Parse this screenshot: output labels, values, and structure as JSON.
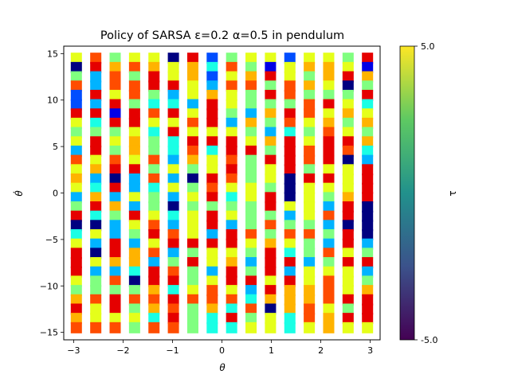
{
  "chart_data": {
    "type": "heatmap",
    "title": "Policy of SARSA ε=0.2 α=0.5 in pendulum",
    "xlabel": "θ",
    "ylabel": "θ̇",
    "colorbar_label": "τ",
    "xlim": [
      -3.2,
      3.2
    ],
    "ylim": [
      -15.8,
      15.8
    ],
    "x_ticks": [
      -3,
      -2,
      -1,
      0,
      1,
      2,
      3
    ],
    "x_tick_labels": [
      "−3",
      "−2",
      "−1",
      "0",
      "1",
      "2",
      "3"
    ],
    "y_ticks": [
      -15,
      -10,
      -5,
      0,
      5,
      10,
      15
    ],
    "y_tick_labels": [
      "−15",
      "−10",
      "−5",
      "0",
      "5",
      "10",
      "15"
    ],
    "colorbar_range": [
      -5.0,
      5.0
    ],
    "colorbar_tick_labels": [
      "5.0",
      "-5.0"
    ],
    "colormap_points": [
      "#440154",
      "#3b528b",
      "#21918c",
      "#5ec962",
      "#fde725"
    ],
    "marker_colormap": "jet",
    "grid": false,
    "x": [
      -2.9452,
      -2.5525,
      -2.1598,
      -1.7671,
      -1.3744,
      -0.9817,
      -0.589,
      -0.1963,
      0.1963,
      0.589,
      0.9817,
      1.3744,
      1.7671,
      2.1598,
      2.5525,
      2.9452
    ],
    "y": [
      14.5,
      13.5,
      12.5,
      11.5,
      10.5,
      9.5,
      8.5,
      7.5,
      6.5,
      5.5,
      4.5,
      3.5,
      2.5,
      1.5,
      0.5,
      -0.5,
      -1.5,
      -2.5,
      -3.5,
      -4.5,
      -5.5,
      -6.5,
      -7.5,
      -8.5,
      -9.5,
      -10.5,
      -11.5,
      -12.5,
      -13.5,
      -14.5
    ],
    "values": [
      [
        1,
        3,
        0,
        1,
        1,
        -5,
        4,
        -3,
        0,
        1,
        1,
        -3,
        1,
        1,
        0,
        4
      ],
      [
        -5,
        4,
        2,
        3,
        2,
        1,
        2,
        -1,
        3,
        0,
        -4,
        1,
        2,
        2,
        1,
        -4
      ],
      [
        0,
        -2,
        3,
        0,
        4,
        1,
        2,
        -3,
        1,
        2,
        4,
        1,
        0,
        2,
        4,
        2
      ],
      [
        3,
        -2,
        3,
        3,
        4,
        4,
        1,
        -2,
        3,
        3,
        0,
        3,
        2,
        1,
        -5,
        0
      ],
      [
        -3,
        4,
        1,
        3,
        0,
        -2,
        1,
        2,
        1,
        0,
        4,
        3,
        0,
        0,
        0,
        4
      ],
      [
        -3,
        -2,
        4,
        0,
        -1,
        -1,
        -2,
        4,
        1,
        0,
        0,
        0,
        3,
        4,
        1,
        -1
      ],
      [
        4,
        4,
        -4,
        4,
        3,
        4,
        1,
        4,
        0,
        -2,
        2,
        4,
        3,
        1,
        2,
        1
      ],
      [
        1,
        -1,
        4,
        4,
        1,
        1,
        3,
        4,
        -2,
        2,
        0,
        3,
        1,
        2,
        0,
        2
      ],
      [
        0,
        0,
        0,
        1,
        -1,
        4,
        1,
        1,
        1,
        0,
        -2,
        -1,
        0,
        3,
        1,
        0
      ],
      [
        1,
        4,
        1,
        2,
        0,
        -1,
        4,
        4,
        4,
        1,
        2,
        4,
        1,
        4,
        4,
        2
      ],
      [
        -2,
        4,
        0,
        2,
        0,
        -1,
        3,
        -1,
        4,
        4,
        0,
        4,
        3,
        4,
        3,
        -1
      ],
      [
        3,
        1,
        3,
        1,
        3,
        -2,
        2,
        1,
        3,
        0,
        4,
        4,
        3,
        4,
        -5,
        -2
      ],
      [
        1,
        2,
        4,
        4,
        0,
        1,
        0,
        1,
        4,
        0,
        1,
        4,
        0,
        1,
        1,
        4
      ],
      [
        2,
        -2,
        -5,
        -2,
        3,
        -2,
        -5,
        4,
        3,
        0,
        1,
        -5,
        4,
        4,
        1,
        4
      ],
      [
        1,
        -1,
        4,
        -2,
        -1,
        1,
        0,
        3,
        1,
        1,
        0,
        -5,
        1,
        1,
        1,
        4
      ],
      [
        -2,
        2,
        -2,
        1,
        0,
        -2,
        1,
        4,
        -1,
        1,
        4,
        -5,
        1,
        0,
        2,
        4
      ],
      [
        0,
        4,
        2,
        -2,
        0,
        -5,
        0,
        0,
        0,
        0,
        4,
        1,
        1,
        -2,
        4,
        -5
      ],
      [
        4,
        -1,
        0,
        4,
        1,
        -1,
        1,
        4,
        1,
        0,
        0,
        -2,
        1,
        3,
        4,
        -5
      ],
      [
        -5,
        -5,
        -2,
        1,
        3,
        -2,
        1,
        4,
        -2,
        0,
        3,
        0,
        0,
        -2,
        -5,
        -5
      ],
      [
        -1,
        1,
        -2,
        0,
        4,
        3,
        1,
        -2,
        4,
        3,
        0,
        3,
        3,
        0,
        4,
        -5
      ],
      [
        1,
        -2,
        4,
        -2,
        1,
        4,
        4,
        4,
        4,
        1,
        2,
        1,
        0,
        -2,
        4,
        -2
      ],
      [
        4,
        -5,
        4,
        2,
        3,
        -2,
        0,
        1,
        1,
        0,
        4,
        -1,
        0,
        3,
        1,
        0
      ],
      [
        4,
        1,
        2,
        2,
        -2,
        0,
        4,
        1,
        2,
        -2,
        4,
        4,
        -2,
        0,
        4,
        4
      ],
      [
        4,
        -2,
        -2,
        -1,
        4,
        3,
        0,
        -2,
        4,
        0,
        4,
        -2,
        1,
        1,
        1,
        -2
      ],
      [
        1,
        0,
        3,
        -5,
        4,
        4,
        0,
        1,
        4,
        4,
        1,
        4,
        1,
        3,
        1,
        0
      ],
      [
        0,
        0,
        0,
        0,
        2,
        -1,
        1,
        3,
        1,
        -2,
        4,
        2,
        2,
        3,
        1,
        2
      ],
      [
        2,
        3,
        4,
        3,
        3,
        4,
        3,
        3,
        3,
        -1,
        2,
        2,
        2,
        3,
        4,
        4
      ],
      [
        4,
        1,
        4,
        0,
        2,
        3,
        0,
        2,
        -1,
        3,
        -5,
        2,
        3,
        1,
        0,
        4
      ],
      [
        2,
        1,
        1,
        1,
        -1,
        4,
        0,
        -1,
        4,
        0,
        1,
        -1,
        3,
        2,
        4,
        4
      ],
      [
        3,
        3,
        3,
        0,
        3,
        3,
        0,
        -1,
        -1,
        1,
        1,
        -1,
        1,
        2,
        1,
        1
      ]
    ]
  }
}
